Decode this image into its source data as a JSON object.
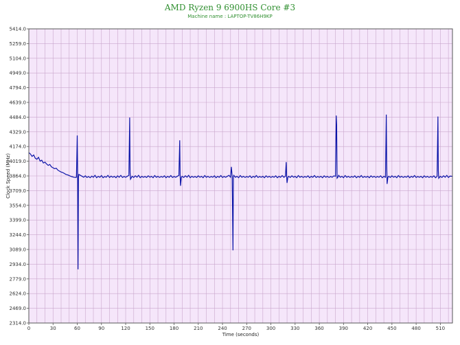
{
  "chart_data": {
    "type": "line",
    "title": "AMD Ryzen 9 6900HS Core #3",
    "subtitle": "Machine name : LAPTOP-TV86H9KP",
    "xlabel": "Time (seconds)",
    "ylabel": "Clock Speed (MHz)",
    "xlim": [
      0,
      525
    ],
    "ylim": [
      2314.0,
      5414.0
    ],
    "xticks": [
      0,
      30,
      60,
      90,
      120,
      150,
      180,
      210,
      240,
      270,
      300,
      330,
      360,
      390,
      420,
      450,
      480,
      510
    ],
    "yticks": [
      2314.0,
      2469.0,
      2624.0,
      2779.0,
      2934.0,
      3089.0,
      3244.0,
      3399.0,
      3554.0,
      3709.0,
      3864.0,
      4019.0,
      4174.0,
      4329.0,
      4484.0,
      4639.0,
      4794.0,
      4949.0,
      5104.0,
      5259.0,
      5414.0
    ],
    "grid": true,
    "colors": {
      "line": "#0b14a8",
      "plot_bg": "#f5e6fa",
      "grid": "#c9a6cc",
      "title": "#2f8f2f"
    },
    "series": [
      {
        "points": [
          [
            0,
            4110
          ],
          [
            2,
            4095
          ],
          [
            4,
            4070
          ],
          [
            6,
            4085
          ],
          [
            8,
            4050
          ],
          [
            10,
            4040
          ],
          [
            12,
            4060
          ],
          [
            14,
            4020
          ],
          [
            16,
            4030
          ],
          [
            18,
            4000
          ],
          [
            20,
            4010
          ],
          [
            22,
            3990
          ],
          [
            24,
            3975
          ],
          [
            26,
            3985
          ],
          [
            28,
            3960
          ],
          [
            30,
            3950
          ],
          [
            32,
            3940
          ],
          [
            34,
            3945
          ],
          [
            36,
            3925
          ],
          [
            38,
            3915
          ],
          [
            40,
            3905
          ],
          [
            42,
            3900
          ],
          [
            44,
            3890
          ],
          [
            46,
            3880
          ],
          [
            48,
            3875
          ],
          [
            50,
            3868
          ],
          [
            52,
            3860
          ],
          [
            54,
            3855
          ],
          [
            56,
            3850
          ],
          [
            58,
            3848
          ],
          [
            59,
            3850
          ],
          [
            60,
            4290
          ],
          [
            60.5,
            3880
          ],
          [
            61,
            2880
          ],
          [
            61.5,
            3850
          ],
          [
            62,
            3880
          ],
          [
            64,
            3870
          ],
          [
            66,
            3860
          ],
          [
            68,
            3850
          ],
          [
            70,
            3865
          ],
          [
            72,
            3848
          ],
          [
            74,
            3858
          ],
          [
            76,
            3845
          ],
          [
            78,
            3862
          ],
          [
            80,
            3850
          ],
          [
            82,
            3870
          ],
          [
            84,
            3845
          ],
          [
            86,
            3860
          ],
          [
            88,
            3850
          ],
          [
            90,
            3868
          ],
          [
            92,
            3845
          ],
          [
            94,
            3858
          ],
          [
            96,
            3850
          ],
          [
            98,
            3870
          ],
          [
            100,
            3848
          ],
          [
            102,
            3862
          ],
          [
            104,
            3850
          ],
          [
            106,
            3860
          ],
          [
            108,
            3845
          ],
          [
            110,
            3865
          ],
          [
            112,
            3850
          ],
          [
            114,
            3870
          ],
          [
            116,
            3848
          ],
          [
            118,
            3858
          ],
          [
            120,
            3850
          ],
          [
            122,
            3860
          ],
          [
            124,
            3870
          ],
          [
            125,
            4480
          ],
          [
            125.5,
            3900
          ],
          [
            126,
            3830
          ],
          [
            128,
            3860
          ],
          [
            130,
            3848
          ],
          [
            132,
            3865
          ],
          [
            134,
            3850
          ],
          [
            136,
            3870
          ],
          [
            138,
            3845
          ],
          [
            140,
            3860
          ],
          [
            142,
            3850
          ],
          [
            144,
            3858
          ],
          [
            146,
            3848
          ],
          [
            148,
            3865
          ],
          [
            150,
            3850
          ],
          [
            152,
            3860
          ],
          [
            154,
            3845
          ],
          [
            156,
            3868
          ],
          [
            158,
            3850
          ],
          [
            160,
            3860
          ],
          [
            162,
            3848
          ],
          [
            164,
            3858
          ],
          [
            166,
            3850
          ],
          [
            168,
            3865
          ],
          [
            170,
            3845
          ],
          [
            172,
            3860
          ],
          [
            174,
            3850
          ],
          [
            176,
            3868
          ],
          [
            178,
            3848
          ],
          [
            180,
            3858
          ],
          [
            182,
            3850
          ],
          [
            184,
            3860
          ],
          [
            186,
            3870
          ],
          [
            187,
            4240
          ],
          [
            187.5,
            3880
          ],
          [
            188,
            3760
          ],
          [
            189,
            3850
          ],
          [
            190,
            3860
          ],
          [
            192,
            3848
          ],
          [
            194,
            3865
          ],
          [
            196,
            3850
          ],
          [
            198,
            3870
          ],
          [
            200,
            3845
          ],
          [
            202,
            3860
          ],
          [
            204,
            3850
          ],
          [
            206,
            3858
          ],
          [
            208,
            3848
          ],
          [
            210,
            3865
          ],
          [
            212,
            3850
          ],
          [
            214,
            3860
          ],
          [
            216,
            3845
          ],
          [
            218,
            3868
          ],
          [
            220,
            3850
          ],
          [
            222,
            3860
          ],
          [
            224,
            3848
          ],
          [
            226,
            3858
          ],
          [
            228,
            3850
          ],
          [
            230,
            3865
          ],
          [
            232,
            3845
          ],
          [
            234,
            3860
          ],
          [
            236,
            3850
          ],
          [
            238,
            3868
          ],
          [
            240,
            3848
          ],
          [
            242,
            3858
          ],
          [
            244,
            3850
          ],
          [
            246,
            3860
          ],
          [
            248,
            3870
          ],
          [
            250,
            3850
          ],
          [
            251,
            3960
          ],
          [
            252,
            3860
          ],
          [
            253,
            3080
          ],
          [
            253.5,
            3850
          ],
          [
            254,
            3870
          ],
          [
            256,
            3850
          ],
          [
            258,
            3860
          ],
          [
            260,
            3845
          ],
          [
            262,
            3868
          ],
          [
            264,
            3850
          ],
          [
            266,
            3860
          ],
          [
            268,
            3848
          ],
          [
            270,
            3858
          ],
          [
            272,
            3850
          ],
          [
            274,
            3865
          ],
          [
            276,
            3845
          ],
          [
            278,
            3860
          ],
          [
            280,
            3850
          ],
          [
            282,
            3868
          ],
          [
            284,
            3848
          ],
          [
            286,
            3858
          ],
          [
            288,
            3850
          ],
          [
            290,
            3860
          ],
          [
            292,
            3845
          ],
          [
            294,
            3865
          ],
          [
            296,
            3850
          ],
          [
            298,
            3860
          ],
          [
            300,
            3848
          ],
          [
            302,
            3858
          ],
          [
            304,
            3850
          ],
          [
            306,
            3865
          ],
          [
            308,
            3845
          ],
          [
            310,
            3860
          ],
          [
            312,
            3850
          ],
          [
            314,
            3868
          ],
          [
            316,
            3850
          ],
          [
            318,
            3860
          ],
          [
            319,
            4010
          ],
          [
            319.5,
            3860
          ],
          [
            320,
            3790
          ],
          [
            321,
            3850
          ],
          [
            322,
            3860
          ],
          [
            324,
            3848
          ],
          [
            326,
            3865
          ],
          [
            328,
            3850
          ],
          [
            330,
            3860
          ],
          [
            332,
            3845
          ],
          [
            334,
            3868
          ],
          [
            336,
            3850
          ],
          [
            338,
            3860
          ],
          [
            340,
            3848
          ],
          [
            342,
            3858
          ],
          [
            344,
            3850
          ],
          [
            346,
            3865
          ],
          [
            348,
            3845
          ],
          [
            350,
            3860
          ],
          [
            352,
            3850
          ],
          [
            354,
            3868
          ],
          [
            356,
            3848
          ],
          [
            358,
            3858
          ],
          [
            360,
            3850
          ],
          [
            362,
            3860
          ],
          [
            364,
            3845
          ],
          [
            366,
            3865
          ],
          [
            368,
            3850
          ],
          [
            370,
            3860
          ],
          [
            372,
            3848
          ],
          [
            374,
            3858
          ],
          [
            376,
            3850
          ],
          [
            378,
            3865
          ],
          [
            380,
            3860
          ],
          [
            381,
            4500
          ],
          [
            381.5,
            4400
          ],
          [
            382,
            3840
          ],
          [
            383,
            3850
          ],
          [
            384,
            3870
          ],
          [
            386,
            3850
          ],
          [
            388,
            3860
          ],
          [
            390,
            3845
          ],
          [
            392,
            3868
          ],
          [
            394,
            3850
          ],
          [
            396,
            3860
          ],
          [
            398,
            3848
          ],
          [
            400,
            3858
          ],
          [
            402,
            3850
          ],
          [
            404,
            3865
          ],
          [
            406,
            3845
          ],
          [
            408,
            3860
          ],
          [
            410,
            3850
          ],
          [
            412,
            3868
          ],
          [
            414,
            3848
          ],
          [
            416,
            3858
          ],
          [
            418,
            3850
          ],
          [
            420,
            3860
          ],
          [
            422,
            3845
          ],
          [
            424,
            3865
          ],
          [
            426,
            3850
          ],
          [
            428,
            3860
          ],
          [
            430,
            3848
          ],
          [
            432,
            3858
          ],
          [
            434,
            3850
          ],
          [
            436,
            3865
          ],
          [
            438,
            3845
          ],
          [
            440,
            3860
          ],
          [
            442,
            3850
          ],
          [
            443,
            4510
          ],
          [
            443.5,
            4000
          ],
          [
            444,
            3780
          ],
          [
            445,
            3850
          ],
          [
            446,
            3860
          ],
          [
            448,
            3848
          ],
          [
            450,
            3865
          ],
          [
            452,
            3850
          ],
          [
            454,
            3860
          ],
          [
            456,
            3845
          ],
          [
            458,
            3868
          ],
          [
            460,
            3850
          ],
          [
            462,
            3860
          ],
          [
            464,
            3848
          ],
          [
            466,
            3858
          ],
          [
            468,
            3850
          ],
          [
            470,
            3865
          ],
          [
            472,
            3845
          ],
          [
            474,
            3860
          ],
          [
            476,
            3850
          ],
          [
            478,
            3868
          ],
          [
            480,
            3848
          ],
          [
            482,
            3858
          ],
          [
            484,
            3850
          ],
          [
            486,
            3860
          ],
          [
            488,
            3845
          ],
          [
            490,
            3865
          ],
          [
            492,
            3850
          ],
          [
            494,
            3860
          ],
          [
            496,
            3848
          ],
          [
            498,
            3858
          ],
          [
            500,
            3850
          ],
          [
            502,
            3865
          ],
          [
            504,
            3845
          ],
          [
            506,
            3860
          ],
          [
            507,
            4490
          ],
          [
            507.5,
            3920
          ],
          [
            508,
            3840
          ],
          [
            510,
            3860
          ],
          [
            512,
            3848
          ],
          [
            514,
            3865
          ],
          [
            516,
            3850
          ],
          [
            518,
            3870
          ],
          [
            520,
            3848
          ],
          [
            522,
            3862
          ],
          [
            525,
            3860
          ]
        ]
      }
    ]
  }
}
